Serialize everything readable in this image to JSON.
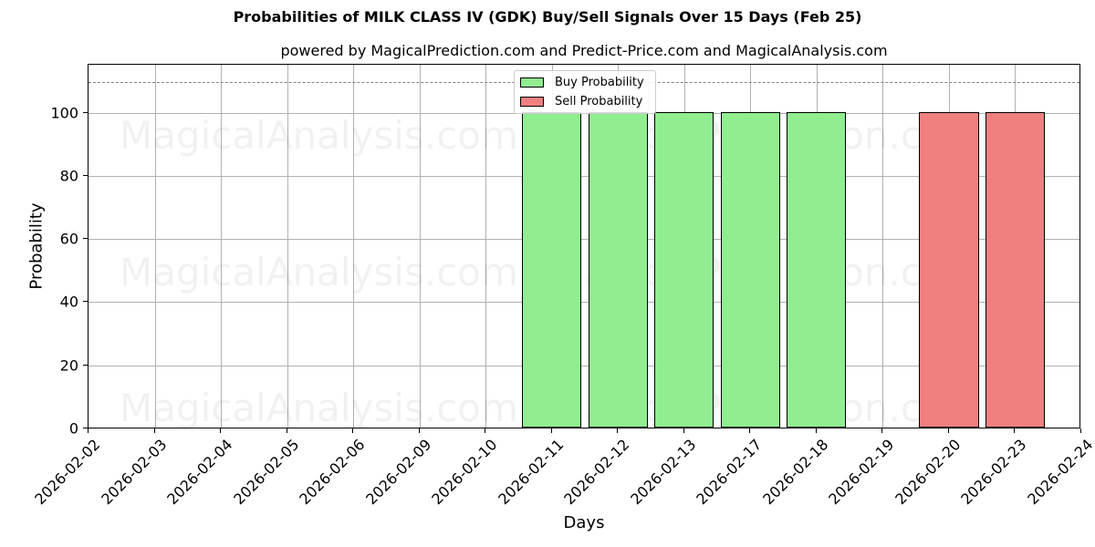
{
  "header": {
    "title": "Probabilities of MILK CLASS IV (GDK) Buy/Sell Signals Over 15 Days (Feb 25)",
    "subtitle": "powered by MagicalPrediction.com and Predict-Price.com and MagicalAnalysis.com"
  },
  "axes": {
    "xlabel": "Days",
    "ylabel": "Probability",
    "yticks": [
      "0",
      "20",
      "40",
      "60",
      "80",
      "100"
    ]
  },
  "legend": {
    "buy": "Buy Probability",
    "sell": "Sell Probability"
  },
  "watermarks": [
    "MagicalAnalysis.com",
    "MagicalPrediction.com"
  ],
  "colors": {
    "buy": "#90ee90",
    "sell": "#f08080",
    "ref_line": "#808080"
  },
  "chart_data": {
    "type": "bar",
    "title": "Probabilities of MILK CLASS IV (GDK) Buy/Sell Signals Over 15 Days (Feb 25)",
    "subtitle": "powered by MagicalPrediction.com and Predict-Price.com and MagicalAnalysis.com",
    "xlabel": "Days",
    "ylabel": "Probability",
    "categories": [
      "2026-02-02",
      "2026-02-03",
      "2026-02-04",
      "2026-02-05",
      "2026-02-06",
      "2026-02-09",
      "2026-02-10",
      "2026-02-11",
      "2026-02-12",
      "2026-02-13",
      "2026-02-17",
      "2026-02-18",
      "2026-02-19",
      "2026-02-20",
      "2026-02-23",
      "2026-02-24"
    ],
    "series": [
      {
        "name": "Buy Probability",
        "color": "#90ee90",
        "values": [
          0,
          0,
          0,
          0,
          0,
          0,
          0,
          100,
          100,
          100,
          100,
          100,
          0,
          0,
          0,
          0
        ]
      },
      {
        "name": "Sell Probability",
        "color": "#f08080",
        "values": [
          0,
          0,
          0,
          0,
          0,
          0,
          0,
          0,
          0,
          0,
          0,
          0,
          0,
          100,
          100,
          0
        ]
      }
    ],
    "reference_line": {
      "y": 110,
      "style": "dashed"
    },
    "ylim": [
      0,
      115.5
    ],
    "yticks": [
      0,
      20,
      40,
      60,
      80,
      100
    ],
    "grid": true,
    "legend_position": "upper center"
  }
}
